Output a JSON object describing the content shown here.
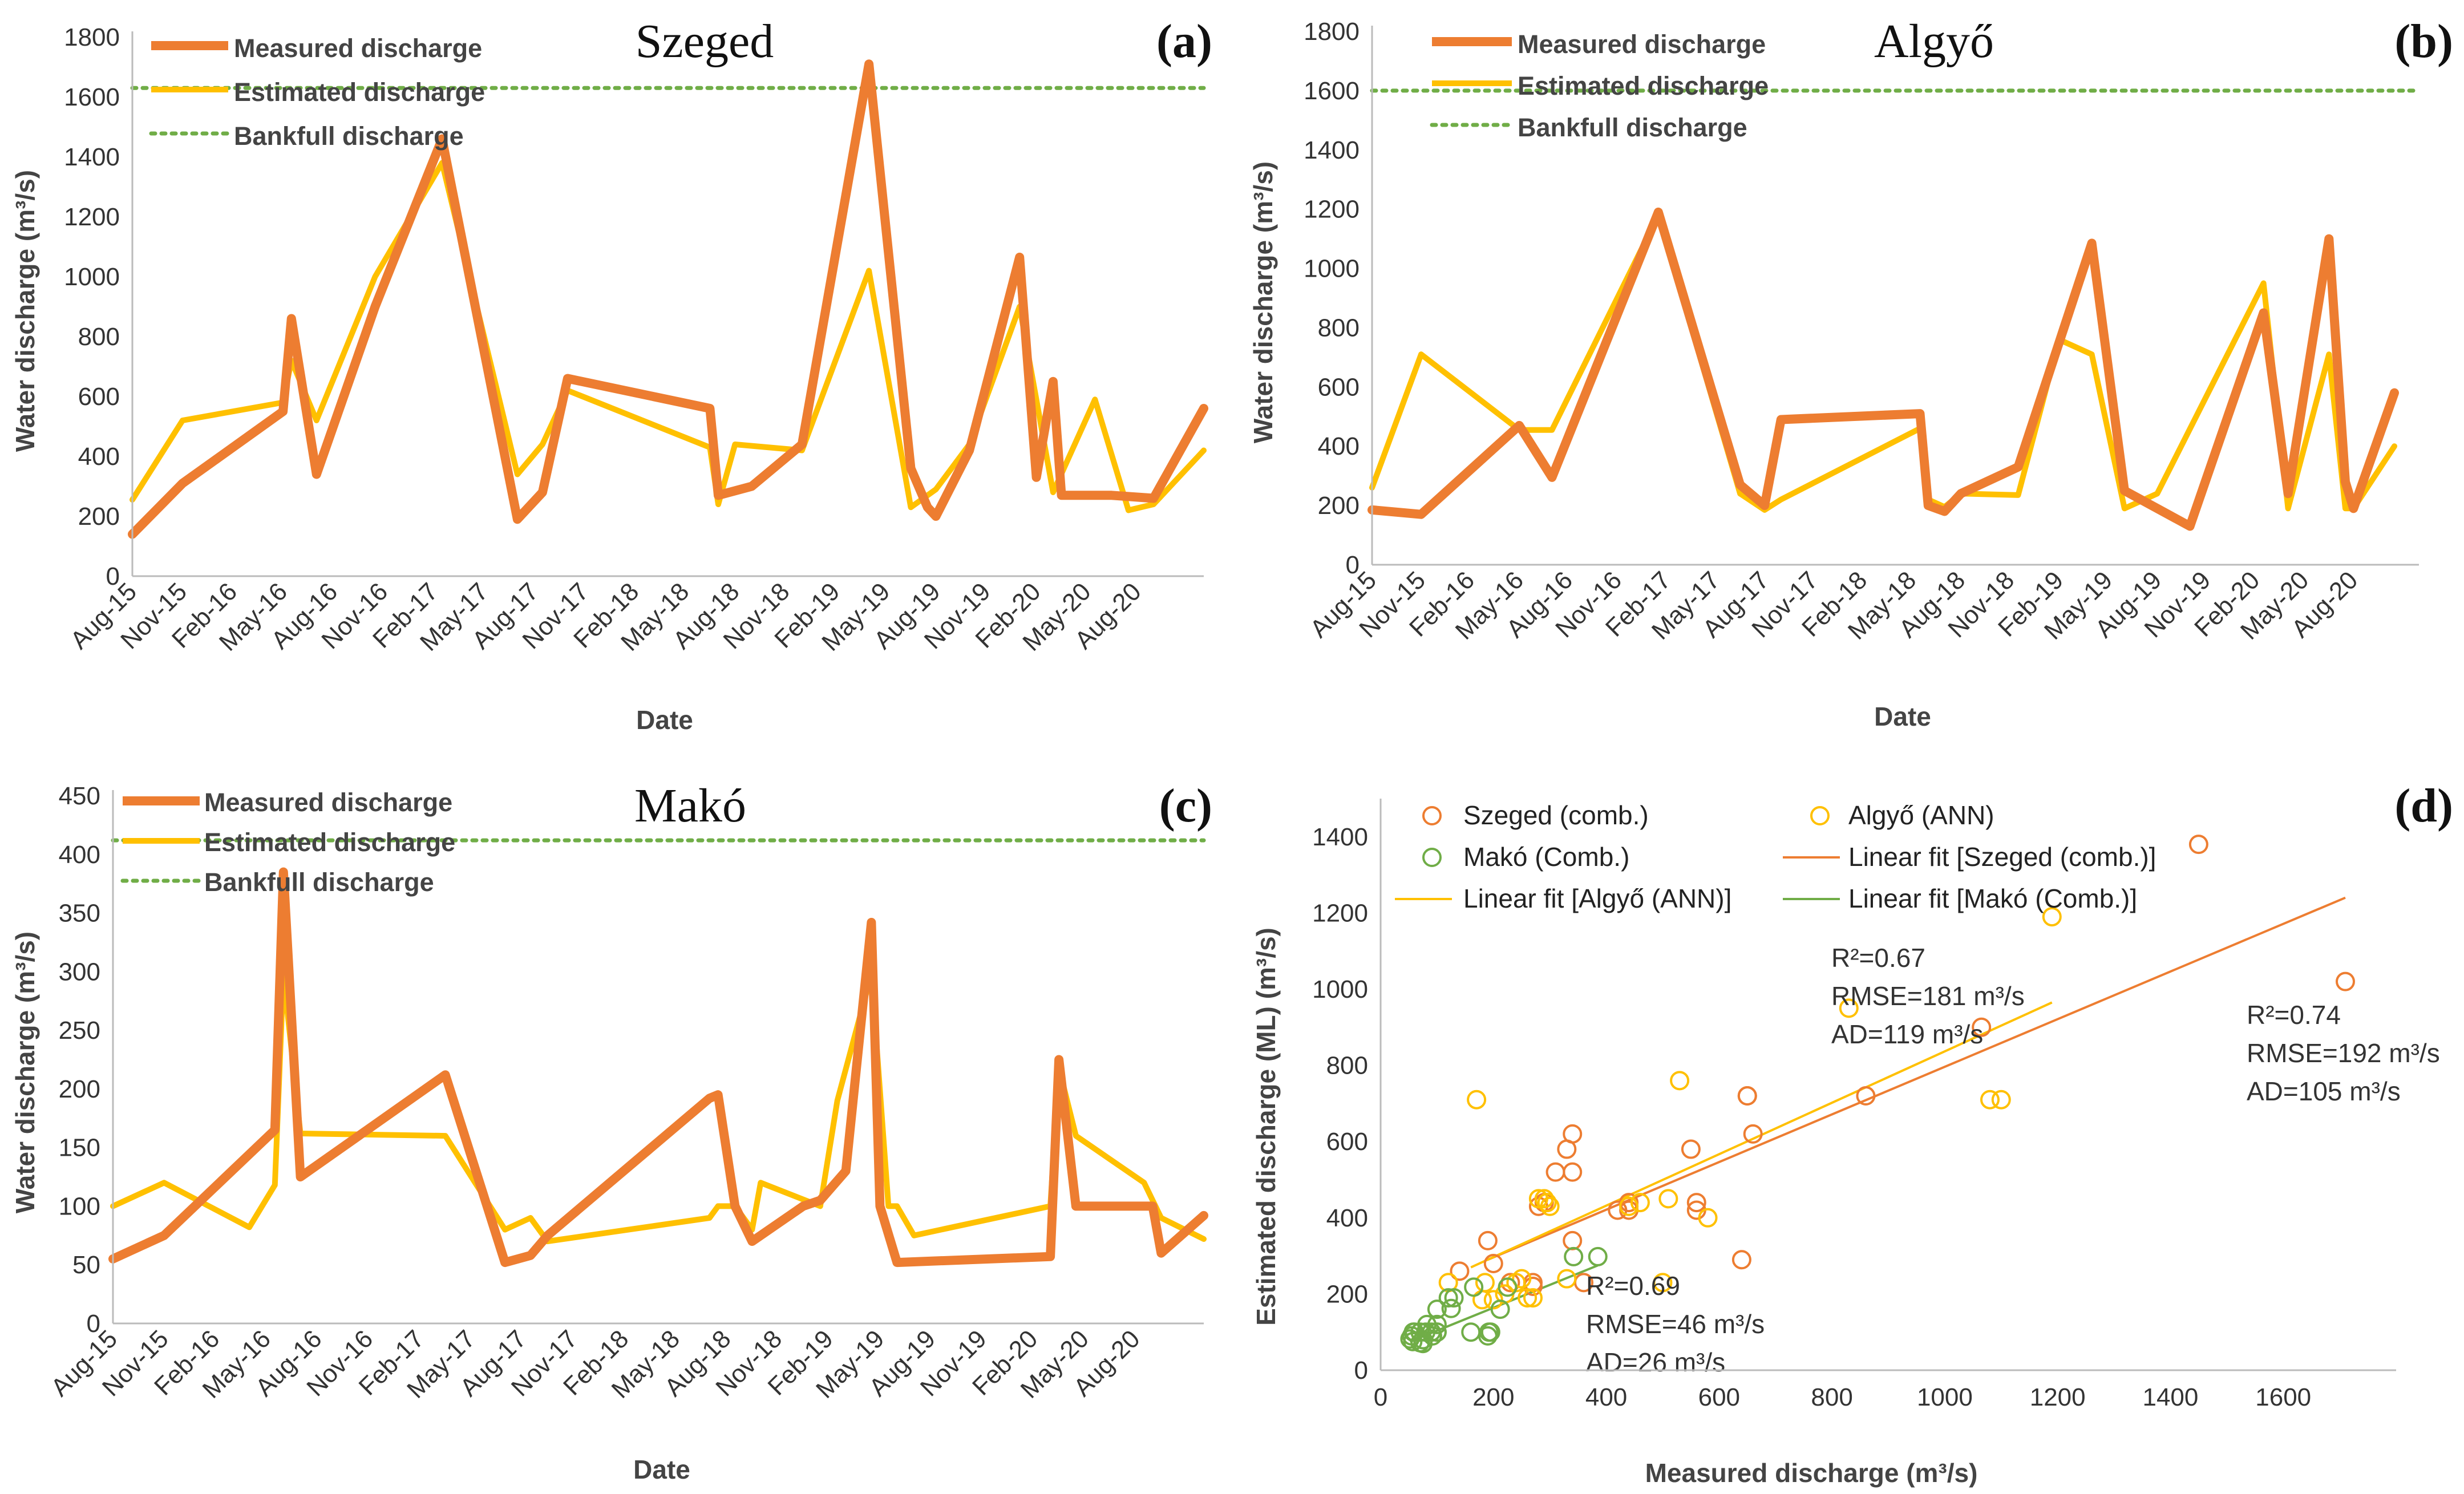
{
  "colors": {
    "measured": "#ED7D31",
    "estimated": "#FFC000",
    "bankfull": "#70AD47",
    "szeged": "#ED7D31",
    "algyo": "#FFC000",
    "mako": "#70AD47"
  },
  "chart_data": [
    {
      "id": "a",
      "type": "line",
      "title": "Szeged",
      "panel_label": "(a)",
      "xlabel": "Date",
      "ylabel": "Water discharge (m³/s)",
      "ylim": [
        0,
        1800
      ],
      "yticks": [
        0,
        200,
        400,
        600,
        800,
        1000,
        1200,
        1400,
        1600,
        1800
      ],
      "xlim": [
        0,
        64
      ],
      "xtick_pos": [
        0,
        3,
        6,
        9,
        12,
        15,
        18,
        21,
        24,
        27,
        30,
        33,
        36,
        39,
        42,
        45,
        48,
        51,
        54,
        57,
        60
      ],
      "xticks": [
        "Aug-15",
        "Nov-15",
        "Feb-16",
        "May-16",
        "Aug-16",
        "Nov-16",
        "Feb-17",
        "May-17",
        "Aug-17",
        "Nov-17",
        "Feb-18",
        "May-18",
        "Aug-18",
        "Nov-18",
        "Feb-19",
        "May-19",
        "Aug-19",
        "Nov-19",
        "Feb-20",
        "May-20",
        "Aug-20"
      ],
      "legend": {
        "placement": "top-left",
        "measured": "Measured discharge",
        "estimated": "Estimated discharge",
        "bankfull": "Bankfull discharge"
      },
      "bankfull": 1630,
      "series": [
        {
          "name": "Measured discharge",
          "x": [
            0,
            3,
            9,
            9.5,
            11,
            14.5,
            18.5,
            23,
            24.5,
            26,
            34.5,
            35,
            37,
            40,
            44,
            46.5,
            47.5,
            48,
            50,
            53,
            54,
            55,
            55.5,
            58.5,
            61,
            64
          ],
          "y": [
            140,
            310,
            550,
            860,
            340,
            900,
            1460,
            190,
            280,
            660,
            560,
            270,
            300,
            440,
            1710,
            360,
            230,
            200,
            420,
            1065,
            330,
            650,
            270,
            270,
            260,
            560
          ]
        },
        {
          "name": "Estimated discharge",
          "x": [
            0,
            3,
            9,
            9.5,
            11,
            14.5,
            18.5,
            23,
            24.5,
            26,
            34.5,
            35,
            36,
            40,
            44,
            46.5,
            48,
            50,
            53,
            55,
            57.5,
            59.5,
            61,
            64
          ],
          "y": [
            255,
            520,
            580,
            720,
            520,
            1000,
            1380,
            340,
            440,
            620,
            430,
            240,
            440,
            420,
            1020,
            230,
            290,
            440,
            900,
            280,
            590,
            220,
            240,
            420
          ]
        }
      ]
    },
    {
      "id": "b",
      "type": "line",
      "title": "Algyő",
      "panel_label": "(b)",
      "xlabel": "Date",
      "ylabel": "Water discharge (m³/s)",
      "ylim": [
        0,
        1800
      ],
      "yticks": [
        0,
        200,
        400,
        600,
        800,
        1000,
        1200,
        1400,
        1600,
        1800
      ],
      "xlim": [
        0,
        64
      ],
      "xtick_pos": [
        0,
        3,
        6,
        9,
        12,
        15,
        18,
        21,
        24,
        27,
        30,
        33,
        36,
        39,
        42,
        45,
        48,
        51,
        54,
        57,
        60
      ],
      "xticks": [
        "Aug-15",
        "Nov-15",
        "Feb-16",
        "May-16",
        "Aug-16",
        "Nov-16",
        "Feb-17",
        "May-17",
        "Aug-17",
        "Nov-17",
        "Feb-18",
        "May-18",
        "Aug-18",
        "Nov-18",
        "Feb-19",
        "May-19",
        "Aug-19",
        "Nov-19",
        "Feb-20",
        "May-20",
        "Aug-20"
      ],
      "legend": {
        "placement": "top-left",
        "measured": "Measured discharge",
        "estimated": "Estimated discharge",
        "bankfull": "Bankfull discharge"
      },
      "bankfull": 1600,
      "series": [
        {
          "name": "Measured discharge",
          "x": [
            0,
            3,
            9,
            11,
            17.5,
            22.5,
            24,
            25,
            33.5,
            34,
            35,
            36,
            39.5,
            44,
            46,
            50,
            54.5,
            56,
            58.5,
            59.5,
            60,
            62.5
          ],
          "y": [
            185,
            170,
            470,
            295,
            1190,
            270,
            200,
            490,
            510,
            200,
            180,
            240,
            330,
            1085,
            250,
            130,
            850,
            240,
            1100,
            280,
            190,
            580
          ]
        },
        {
          "name": "Estimated discharge",
          "x": [
            0,
            3,
            9,
            11,
            17.5,
            22.5,
            24,
            25,
            33.5,
            34,
            35,
            36,
            39.5,
            42,
            44,
            46,
            48,
            54.5,
            56,
            58.5,
            59.5,
            60,
            62.5
          ],
          "y": [
            260,
            710,
            455,
            455,
            1180,
            240,
            185,
            220,
            460,
            220,
            195,
            240,
            235,
            760,
            710,
            190,
            240,
            950,
            190,
            710,
            190,
            190,
            400
          ]
        }
      ]
    },
    {
      "id": "c",
      "type": "line",
      "title": "Makó",
      "panel_label": "(c)",
      "xlabel": "Date",
      "ylabel": "Water discharge (m³/s)",
      "ylim": [
        0,
        450
      ],
      "yticks": [
        0,
        50,
        100,
        150,
        200,
        250,
        300,
        350,
        400,
        450
      ],
      "xlim": [
        0,
        64
      ],
      "xtick_pos": [
        0,
        3,
        6,
        9,
        12,
        15,
        18,
        21,
        24,
        27,
        30,
        33,
        36,
        39,
        42,
        45,
        48,
        51,
        54,
        57,
        60
      ],
      "xticks": [
        "Aug-15",
        "Nov-15",
        "Feb-16",
        "May-16",
        "Aug-16",
        "Nov-16",
        "Feb-17",
        "May-17",
        "Aug-17",
        "Nov-17",
        "Feb-18",
        "May-18",
        "Aug-18",
        "Nov-18",
        "Feb-19",
        "May-19",
        "Aug-19",
        "Nov-19",
        "Feb-20",
        "May-20",
        "Aug-20"
      ],
      "legend": {
        "placement": "top-left",
        "measured": "Measured discharge",
        "estimated": "Estimated discharge",
        "bankfull": "Bankfull discharge"
      },
      "bankfull": 412,
      "series": [
        {
          "name": "Measured discharge",
          "x": [
            0,
            3,
            9.5,
            10,
            11,
            19.5,
            23,
            24.5,
            25.5,
            35,
            35.5,
            36.5,
            37.5,
            40.5,
            41.5,
            43,
            44.5,
            45,
            46,
            55,
            55.5,
            56.5,
            61,
            61.5,
            64
          ],
          "y": [
            55,
            75,
            165,
            385,
            125,
            212,
            52,
            58,
            75,
            192,
            195,
            100,
            70,
            100,
            105,
            130,
            342,
            100,
            52,
            57,
            225,
            100,
            100,
            60,
            92
          ]
        },
        {
          "name": "Estimated discharge",
          "x": [
            0,
            3,
            8,
            9.5,
            10,
            11,
            19.5,
            23,
            24.5,
            25.5,
            35,
            35.5,
            36.5,
            37.5,
            38,
            41.5,
            42.5,
            44.5,
            45.5,
            46,
            47,
            55,
            55.5,
            56.5,
            60.5,
            61.5,
            64
          ],
          "y": [
            100,
            120,
            82,
            118,
            298,
            162,
            160,
            80,
            90,
            70,
            90,
            100,
            100,
            80,
            120,
            100,
            190,
            298,
            100,
            100,
            75,
            100,
            218,
            160,
            120,
            90,
            72
          ]
        }
      ]
    },
    {
      "id": "d",
      "type": "scatter",
      "panel_label": "(d)",
      "xlabel": "Measured discharge  (m³/s)",
      "ylabel": "Estimated discharge (ML) (m³/s)",
      "xlim": [
        0,
        1800
      ],
      "ylim": [
        0,
        1500
      ],
      "xticks": [
        0,
        200,
        400,
        600,
        800,
        1000,
        1200,
        1400,
        1600
      ],
      "yticks": [
        0,
        200,
        400,
        600,
        800,
        1000,
        1200,
        1400
      ],
      "legend": {
        "placement": "top",
        "szeged": "Szeged (comb.)",
        "algyo": "Algyő (ANN)",
        "mako": "Makó (Comb.)",
        "fit_szeged": "Linear fit [Szeged (comb.)]",
        "fit_algyo": "Linear fit [Algyő (ANN)]",
        "fit_mako": "Linear fit [Makó (Comb.)]"
      },
      "series": [
        {
          "name": "Szeged (comb.)",
          "x": [
            140,
            190,
            200,
            230,
            270,
            270,
            280,
            290,
            310,
            330,
            340,
            340,
            340,
            360,
            420,
            440,
            440,
            550,
            560,
            560,
            640,
            650,
            650,
            660,
            860,
            1065,
            1450,
            1710
          ],
          "y": [
            260,
            340,
            280,
            230,
            230,
            220,
            430,
            440,
            520,
            580,
            520,
            620,
            340,
            230,
            420,
            420,
            440,
            580,
            440,
            420,
            290,
            720,
            720,
            620,
            720,
            900,
            1380,
            1020
          ]
        },
        {
          "name": "Algyő (ANN)",
          "x": [
            120,
            170,
            180,
            185,
            200,
            220,
            240,
            250,
            260,
            270,
            280,
            290,
            295,
            300,
            330,
            440,
            460,
            500,
            510,
            530,
            580,
            830,
            1080,
            1100,
            1190
          ],
          "y": [
            230,
            710,
            185,
            230,
            185,
            200,
            230,
            240,
            190,
            190,
            450,
            450,
            440,
            430,
            240,
            430,
            440,
            230,
            450,
            760,
            400,
            950,
            710,
            710,
            1190
          ]
        },
        {
          "name": "Makó (Comb.)",
          "x": [
            52,
            55,
            57,
            58,
            60,
            70,
            70,
            75,
            75,
            80,
            82,
            90,
            92,
            100,
            100,
            100,
            100,
            120,
            125,
            130,
            160,
            165,
            190,
            192,
            195,
            212,
            225,
            342,
            385
          ],
          "y": [
            82,
            90,
            75,
            100,
            100,
            72,
            100,
            80,
            70,
            100,
            120,
            100,
            90,
            100,
            120,
            160,
            100,
            190,
            162,
            190,
            100,
            218,
            90,
            100,
            100,
            160,
            218,
            298,
            298
          ]
        }
      ],
      "fits": [
        {
          "name": "Linear fit [Szeged (comb.)]",
          "x": [
            190,
            1710
          ],
          "y": [
            290,
            1240
          ]
        },
        {
          "name": "Linear fit [Algyő (ANN)]",
          "x": [
            160,
            1190
          ],
          "y": [
            270,
            965
          ]
        },
        {
          "name": "Linear fit [Makó (Comb.)]",
          "x": [
            52,
            385
          ],
          "y": [
            75,
            275
          ]
        }
      ],
      "annotations": {
        "szeged": {
          "r2": "R²=0.74",
          "rmse": "RMSE=192 m³/s",
          "ad": "AD=105 m³/s"
        },
        "algyo": {
          "r2": "R²=0.67",
          "rmse": "RMSE=181 m³/s",
          "ad": "AD=119 m³/s"
        },
        "mako": {
          "r2": "R²=0.69",
          "rmse": "RMSE=46 m³/s",
          "ad": "AD=26 m³/s"
        }
      }
    }
  ]
}
